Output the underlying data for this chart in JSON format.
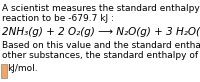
{
  "background_color": "#ffffff",
  "line1": "A scientist measures the standard enthalpy change for the following",
  "line2": "reaction to be -679.7 kJ :",
  "reaction": "2NH₃(g) + 2 O₂(g) ⟶ N₂O(g) + 3 H₂O(l)",
  "line3": "Based on this value and the standard enthalpies of formation for the",
  "line4": "other substances, the standard enthalpy of formation of N₂O(g) is",
  "line5": "kJ/mol.",
  "box_color": "#f4a460",
  "text_color": "#000000",
  "font_size": 6.5,
  "reaction_font_size": 7.5
}
